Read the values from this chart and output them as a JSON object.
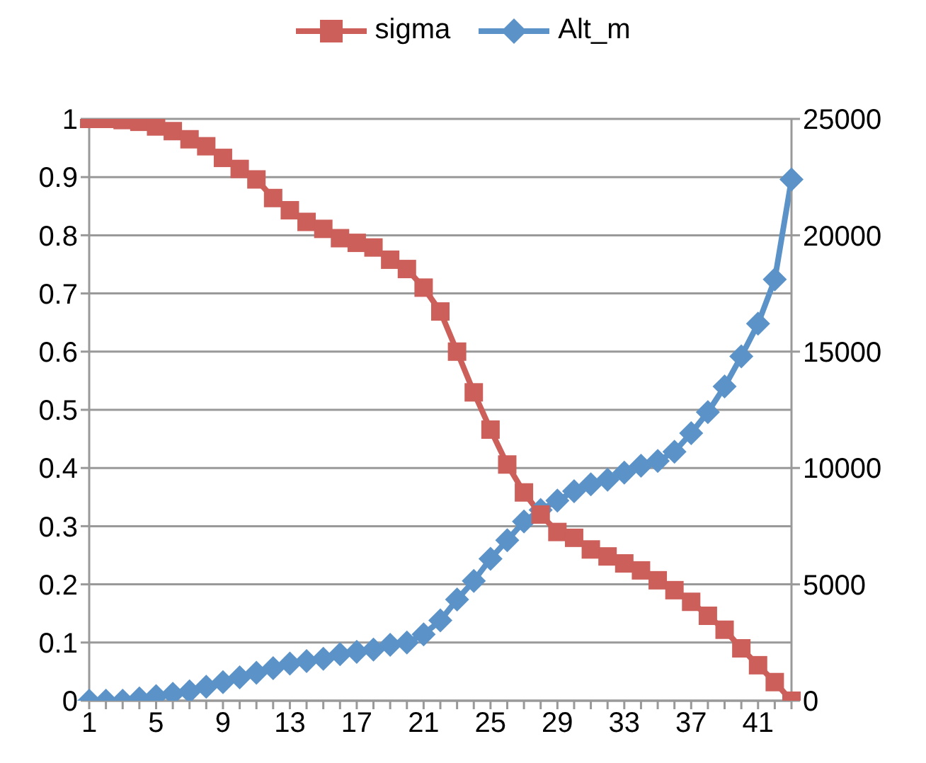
{
  "chart_data": {
    "type": "line",
    "categories": [
      "1",
      null,
      null,
      null,
      "5",
      null,
      null,
      null,
      "9",
      null,
      null,
      null,
      "13",
      null,
      null,
      null,
      "17",
      null,
      null,
      null,
      "21",
      null,
      null,
      null,
      "25",
      null,
      null,
      null,
      "29",
      null,
      null,
      null,
      "33",
      null,
      null,
      null,
      "37",
      null,
      null,
      null,
      "41",
      null,
      null
    ],
    "series": [
      {
        "name": "sigma",
        "color": "#cc5f5a",
        "marker": "square",
        "values": [
          1.0,
          1.0,
          0.998,
          0.995,
          0.987,
          0.979,
          0.965,
          0.953,
          0.933,
          0.914,
          0.896,
          0.864,
          0.843,
          0.823,
          0.811,
          0.795,
          0.787,
          0.779,
          0.758,
          0.742,
          0.71,
          0.669,
          0.6,
          0.53,
          0.466,
          0.406,
          0.358,
          0.32,
          0.29,
          0.28,
          0.26,
          0.248,
          0.236,
          0.224,
          0.207,
          0.19,
          0.17,
          0.146,
          0.122,
          0.09,
          0.061,
          0.032,
          0.0
        ]
      },
      {
        "name": "Alt_m",
        "color": "#5b93c8",
        "marker": "diamond",
        "axis": "y2",
        "values": [
          0,
          0,
          0,
          100,
          200,
          300,
          400,
          600,
          800,
          1000,
          1200,
          1400,
          1600,
          1700,
          1800,
          2000,
          2100,
          2200,
          2400,
          2500,
          2850,
          3450,
          4350,
          5150,
          6100,
          6900,
          7700,
          8200,
          8600,
          9000,
          9300,
          9500,
          9800,
          10100,
          10300,
          10700,
          11500,
          12400,
          13500,
          14800,
          16200,
          18100,
          22400
        ]
      }
    ],
    "ylim": [
      0,
      1
    ],
    "yticks": [
      0,
      0.1,
      0.2,
      0.3,
      0.4,
      0.5,
      0.6,
      0.7,
      0.8,
      0.9,
      1
    ],
    "y2lim": [
      0,
      25000
    ],
    "y2ticks": [
      0,
      5000,
      10000,
      15000,
      20000,
      25000
    ],
    "grid": "y",
    "legend": "top"
  }
}
